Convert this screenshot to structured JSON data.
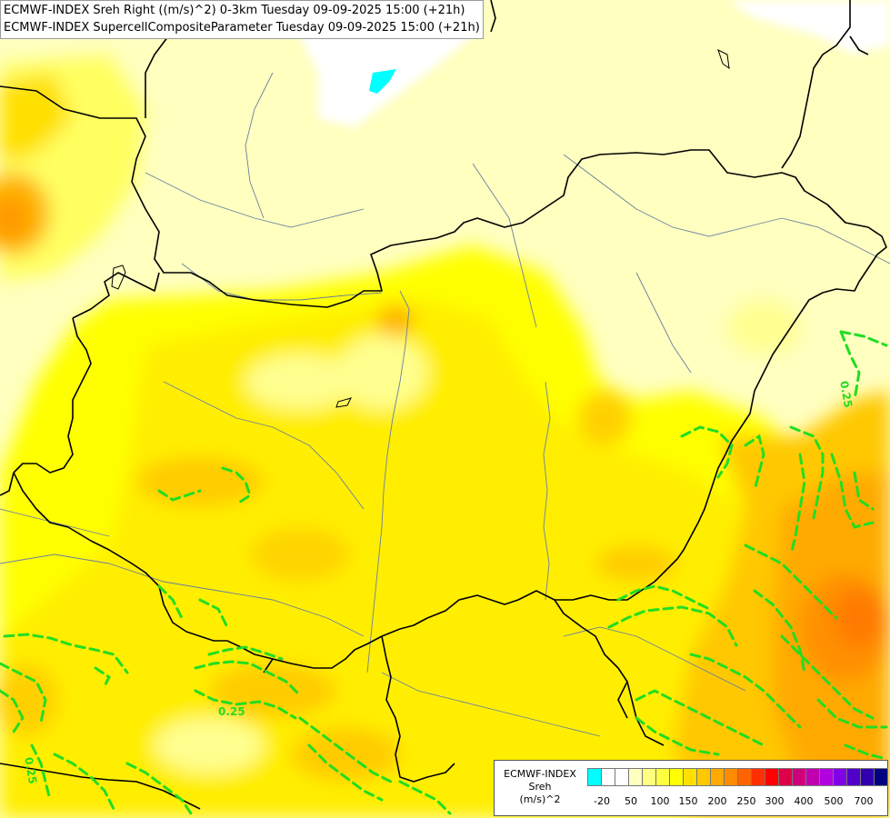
{
  "titles": {
    "line1": "ECMWF-INDEX Sreh Right ((m/s)^2) 0-3km Tuesday 09-09-2025 15:00 (+21h)",
    "line2": "ECMWF-INDEX SupercellCompositeParameter Tuesday 09-09-2025 15:00 (+21h)"
  },
  "map": {
    "contour_label": "0.25",
    "contour_color": "#22dd22",
    "border_color": "#000000",
    "river_color": "#6a7fa0"
  },
  "legend": {
    "title_line1": "ECMWF-INDEX",
    "title_line2": "Sreh",
    "title_line3": "(m/s)^2",
    "swatch_colors": [
      "#00ffff",
      "#ffffff",
      "#ffffff",
      "#ffffc0",
      "#ffff80",
      "#ffff40",
      "#ffff00",
      "#ffe000",
      "#ffc800",
      "#ffaa00",
      "#ff8c00",
      "#ff6400",
      "#ff3000",
      "#ff0000",
      "#e0004a",
      "#d0007a",
      "#c000b0",
      "#b000e0",
      "#8000e8",
      "#5000c8",
      "#3000b0",
      "#000080"
    ],
    "tick_labels": [
      "-20",
      "50",
      "100",
      "150",
      "200",
      "250",
      "300",
      "400",
      "500",
      "700"
    ]
  }
}
